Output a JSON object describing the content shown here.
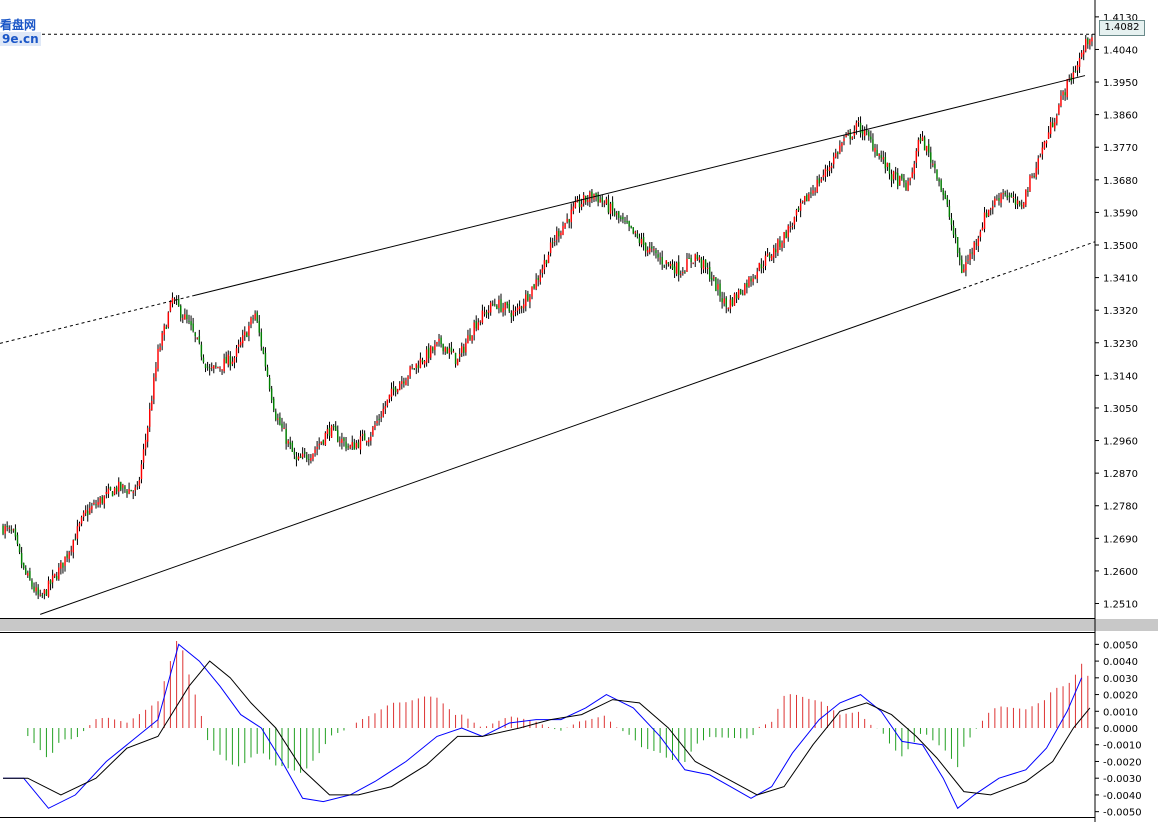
{
  "watermark": {
    "line1": "看盘网",
    "line2": "9e.cn"
  },
  "current_price_label": "1.4082",
  "chart_data": [
    {
      "type": "candlestick",
      "current_price": 1.4082,
      "y_ticks": [
        "1.4130",
        "1.4040",
        "1.3950",
        "1.3860",
        "1.3770",
        "1.3680",
        "1.3590",
        "1.3500",
        "1.3410",
        "1.3320",
        "1.3230",
        "1.3140",
        "1.3050",
        "1.2960",
        "1.2870",
        "1.2780",
        "1.2690",
        "1.2600",
        "1.2510"
      ],
      "ylim": [
        1.247,
        1.416
      ],
      "n_bars": 240,
      "close_path": [
        [
          0,
          1.272
        ],
        [
          5,
          1.27
        ],
        [
          10,
          1.26
        ],
        [
          18,
          1.252
        ],
        [
          28,
          1.261
        ],
        [
          40,
          1.276
        ],
        [
          55,
          1.283
        ],
        [
          65,
          1.282
        ],
        [
          70,
          1.3
        ],
        [
          75,
          1.32
        ],
        [
          82,
          1.335
        ],
        [
          90,
          1.328
        ],
        [
          100,
          1.315
        ],
        [
          112,
          1.319
        ],
        [
          122,
          1.331
        ],
        [
          132,
          1.303
        ],
        [
          142,
          1.29
        ],
        [
          150,
          1.293
        ],
        [
          158,
          1.299
        ],
        [
          168,
          1.294
        ],
        [
          178,
          1.298
        ],
        [
          190,
          1.311
        ],
        [
          202,
          1.318
        ],
        [
          212,
          1.323
        ],
        [
          220,
          1.318
        ],
        [
          228,
          1.328
        ],
        [
          238,
          1.334
        ],
        [
          248,
          1.331
        ],
        [
          258,
          1.34
        ],
        [
          268,
          1.353
        ],
        [
          278,
          1.361
        ],
        [
          286,
          1.364
        ],
        [
          292,
          1.361
        ],
        [
          300,
          1.356
        ],
        [
          310,
          1.35
        ],
        [
          318,
          1.346
        ],
        [
          328,
          1.343
        ],
        [
          335,
          1.347
        ],
        [
          342,
          1.342
        ],
        [
          350,
          1.333
        ],
        [
          358,
          1.338
        ],
        [
          366,
          1.344
        ],
        [
          374,
          1.349
        ],
        [
          382,
          1.356
        ],
        [
          390,
          1.364
        ],
        [
          398,
          1.37
        ],
        [
          406,
          1.378
        ],
        [
          414,
          1.383
        ],
        [
          422,
          1.377
        ],
        [
          430,
          1.369
        ],
        [
          438,
          1.366
        ],
        [
          444,
          1.38
        ],
        [
          452,
          1.37
        ],
        [
          458,
          1.358
        ],
        [
          464,
          1.343
        ],
        [
          468,
          1.347
        ],
        [
          476,
          1.359
        ],
        [
          484,
          1.365
        ],
        [
          492,
          1.36
        ],
        [
          500,
          1.372
        ],
        [
          508,
          1.384
        ],
        [
          514,
          1.393
        ],
        [
          520,
          1.4
        ],
        [
          526,
          1.408
        ]
      ],
      "trendlines": [
        {
          "name": "upper-channel",
          "p1": [
            92,
            1.336
          ],
          "p2": [
            518,
            1.396
          ],
          "extend_left": true,
          "extend_right": true
        },
        {
          "name": "lower-channel",
          "p1": [
            18,
            1.248
          ],
          "p2": [
            462,
            1.3375
          ],
          "extend_right_dashed": true
        }
      ]
    },
    {
      "type": "macd",
      "y_ticks": [
        "0.0050",
        "0.0040",
        "0.0030",
        "0.0020",
        "0.0010",
        "0.0000",
        "-0.0010",
        "-0.0020",
        "-0.0030",
        "-0.0040",
        "-0.0050"
      ],
      "ylim": [
        -0.0052,
        0.0055
      ],
      "macd_path": [
        [
          0,
          -0.003
        ],
        [
          10,
          -0.003
        ],
        [
          22,
          -0.0048
        ],
        [
          35,
          -0.004
        ],
        [
          50,
          -0.002
        ],
        [
          65,
          -0.0005
        ],
        [
          75,
          0.0005
        ],
        [
          85,
          0.005
        ],
        [
          95,
          0.004
        ],
        [
          105,
          0.0025
        ],
        [
          115,
          0.0008
        ],
        [
          125,
          0.0
        ],
        [
          135,
          -0.002
        ],
        [
          145,
          -0.0042
        ],
        [
          155,
          -0.0044
        ],
        [
          168,
          -0.004
        ],
        [
          180,
          -0.0032
        ],
        [
          195,
          -0.002
        ],
        [
          210,
          -0.0005
        ],
        [
          222,
          0.0
        ],
        [
          232,
          -0.0005
        ],
        [
          245,
          0.0003
        ],
        [
          258,
          0.0005
        ],
        [
          270,
          0.0005
        ],
        [
          282,
          0.0012
        ],
        [
          292,
          0.002
        ],
        [
          305,
          0.0012
        ],
        [
          318,
          -0.0005
        ],
        [
          330,
          -0.0025
        ],
        [
          342,
          -0.0028
        ],
        [
          352,
          -0.0035
        ],
        [
          362,
          -0.0042
        ],
        [
          372,
          -0.0035
        ],
        [
          382,
          -0.0015
        ],
        [
          395,
          0.0005
        ],
        [
          405,
          0.0015
        ],
        [
          415,
          0.002
        ],
        [
          425,
          0.001
        ],
        [
          435,
          -0.0008
        ],
        [
          445,
          -0.001
        ],
        [
          455,
          -0.003
        ],
        [
          462,
          -0.0048
        ],
        [
          470,
          -0.004
        ],
        [
          482,
          -0.003
        ],
        [
          495,
          -0.0025
        ],
        [
          505,
          -0.0012
        ],
        [
          515,
          0.001
        ],
        [
          522,
          0.003
        ]
      ],
      "signal_path": [
        [
          0,
          -0.003
        ],
        [
          12,
          -0.003
        ],
        [
          28,
          -0.004
        ],
        [
          45,
          -0.003
        ],
        [
          60,
          -0.0012
        ],
        [
          75,
          -0.0005
        ],
        [
          90,
          0.0025
        ],
        [
          100,
          0.004
        ],
        [
          110,
          0.003
        ],
        [
          120,
          0.0015
        ],
        [
          132,
          0.0
        ],
        [
          145,
          -0.0025
        ],
        [
          158,
          -0.004
        ],
        [
          172,
          -0.004
        ],
        [
          188,
          -0.0035
        ],
        [
          205,
          -0.0022
        ],
        [
          220,
          -0.0005
        ],
        [
          232,
          -0.0005
        ],
        [
          250,
          0.0
        ],
        [
          265,
          0.0005
        ],
        [
          280,
          0.0008
        ],
        [
          295,
          0.0017
        ],
        [
          308,
          0.0015
        ],
        [
          322,
          0.0
        ],
        [
          335,
          -0.002
        ],
        [
          350,
          -0.003
        ],
        [
          365,
          -0.004
        ],
        [
          378,
          -0.0035
        ],
        [
          392,
          -0.001
        ],
        [
          405,
          0.001
        ],
        [
          418,
          0.0015
        ],
        [
          430,
          0.0008
        ],
        [
          442,
          -0.0005
        ],
        [
          452,
          -0.0018
        ],
        [
          465,
          -0.0038
        ],
        [
          478,
          -0.004
        ],
        [
          495,
          -0.0032
        ],
        [
          508,
          -0.002
        ],
        [
          518,
          0.0
        ],
        [
          526,
          0.0012
        ]
      ]
    }
  ],
  "colors": {
    "up_candle": "#ff0000",
    "down_candle": "#008000",
    "wick": "#000000",
    "macd_line": "#0000ff",
    "signal_line": "#000000",
    "hist_positive": "#dd3333",
    "hist_negative": "#22a022",
    "separator": "#c8c8c8"
  }
}
